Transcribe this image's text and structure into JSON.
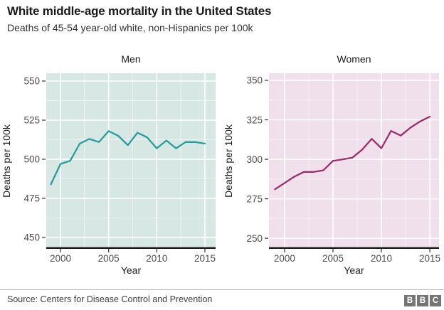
{
  "header": {
    "title": "White middle-age mortality in the United States",
    "subtitle": "Deaths of 45-54 year-old white, non-Hispanics per 100k"
  },
  "footer": {
    "source": "Source: Centers for Disease Control and Prevention",
    "logo_letters": [
      "B",
      "B",
      "C"
    ]
  },
  "colors": {
    "men_line": "#279c9c",
    "men_panel_bg": "#d7e8e4",
    "women_line": "#9e2d6d",
    "women_panel_bg": "#f0e0eb",
    "grid_major": "#ffffff",
    "axis_line": "#1a1a1a",
    "tick_mark": "#333333",
    "tick_label": "#4d4d4d",
    "axis_title": "#1a1a1a",
    "facet_title": "#1a1a1a",
    "footer_text": "#404040",
    "logo_gray": "#757575"
  },
  "chart_data": [
    {
      "type": "line",
      "title": "Men",
      "xlabel": "Year",
      "ylabel": "Deaths per 100k",
      "x": [
        1999,
        2000,
        2001,
        2002,
        2003,
        2004,
        2005,
        2006,
        2007,
        2008,
        2009,
        2010,
        2011,
        2012,
        2013,
        2014,
        2015
      ],
      "values": [
        484,
        497,
        499,
        510,
        513,
        511,
        518,
        515,
        509,
        517,
        514,
        507,
        512,
        507,
        511,
        511,
        510
      ],
      "line_color": "#279c9c",
      "panel_bg": "#d7e8e4",
      "xlim": [
        1998.52,
        2016.11
      ],
      "ylim": [
        442.7,
        555.0
      ],
      "xticks": [
        2000,
        2005,
        2010,
        2015
      ],
      "yticks": [
        450,
        475,
        500,
        525,
        550
      ],
      "xticks_minor": [
        2002.5,
        2007.5,
        2012.5
      ],
      "yticks_minor": [
        462.5,
        487.5,
        512.5,
        537.5
      ],
      "grid": true,
      "legend": "none"
    },
    {
      "type": "line",
      "title": "Women",
      "xlabel": "Year",
      "ylabel": "Deaths per 100k",
      "x": [
        1999,
        2000,
        2001,
        2002,
        2003,
        2004,
        2005,
        2006,
        2007,
        2008,
        2009,
        2010,
        2011,
        2012,
        2013,
        2014,
        2015
      ],
      "values": [
        281,
        285,
        289,
        292,
        292,
        293,
        299,
        300,
        301,
        306,
        313,
        307,
        318,
        315,
        320,
        324,
        327
      ],
      "line_color": "#9e2d6d",
      "panel_bg": "#f0e0eb",
      "xlim": [
        1998.39,
        2015.95
      ],
      "ylim": [
        243.3,
        354.5
      ],
      "xticks": [
        2000,
        2005,
        2010,
        2015
      ],
      "yticks": [
        250,
        275,
        300,
        325,
        350
      ],
      "xticks_minor": [
        2002.5,
        2007.5,
        2012.5
      ],
      "yticks_minor": [
        262.5,
        287.5,
        312.5,
        337.5
      ],
      "grid": true,
      "legend": "none"
    }
  ]
}
